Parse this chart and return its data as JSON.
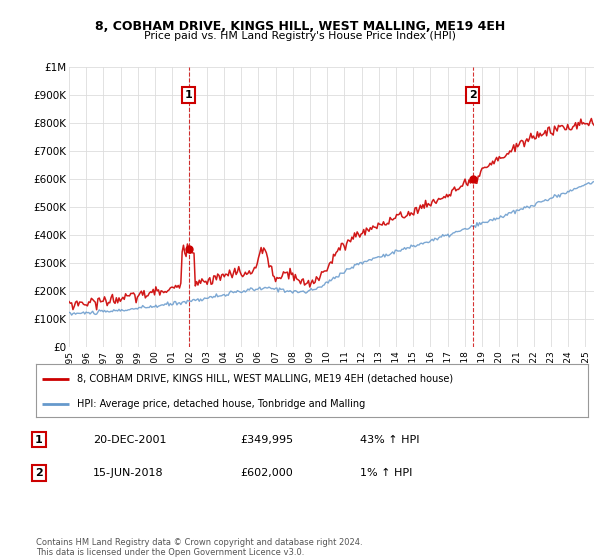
{
  "title": "8, COBHAM DRIVE, KINGS HILL, WEST MALLING, ME19 4EH",
  "subtitle": "Price paid vs. HM Land Registry's House Price Index (HPI)",
  "legend_label_red": "8, COBHAM DRIVE, KINGS HILL, WEST MALLING, ME19 4EH (detached house)",
  "legend_label_blue": "HPI: Average price, detached house, Tonbridge and Malling",
  "annotation1_label": "1",
  "annotation1_date": "20-DEC-2001",
  "annotation1_price": "£349,995",
  "annotation1_hpi": "43% ↑ HPI",
  "annotation2_label": "2",
  "annotation2_date": "15-JUN-2018",
  "annotation2_price": "£602,000",
  "annotation2_hpi": "1% ↑ HPI",
  "footer": "Contains HM Land Registry data © Crown copyright and database right 2024.\nThis data is licensed under the Open Government Licence v3.0.",
  "ylim": [
    0,
    1000000
  ],
  "yticks": [
    0,
    100000,
    200000,
    300000,
    400000,
    500000,
    600000,
    700000,
    800000,
    900000,
    1000000
  ],
  "ytick_labels": [
    "£0",
    "£100K",
    "£200K",
    "£300K",
    "£400K",
    "£500K",
    "£600K",
    "£700K",
    "£800K",
    "£900K",
    "£1M"
  ],
  "red_color": "#cc0000",
  "blue_color": "#6699cc",
  "vline_color": "#cc0000",
  "grid_color": "#dddddd",
  "background_color": "#ffffff",
  "marker1_x": 2001.96,
  "marker1_y": 349995,
  "marker2_x": 2018.46,
  "marker2_y": 602000,
  "xlim": [
    1995,
    2025.5
  ]
}
